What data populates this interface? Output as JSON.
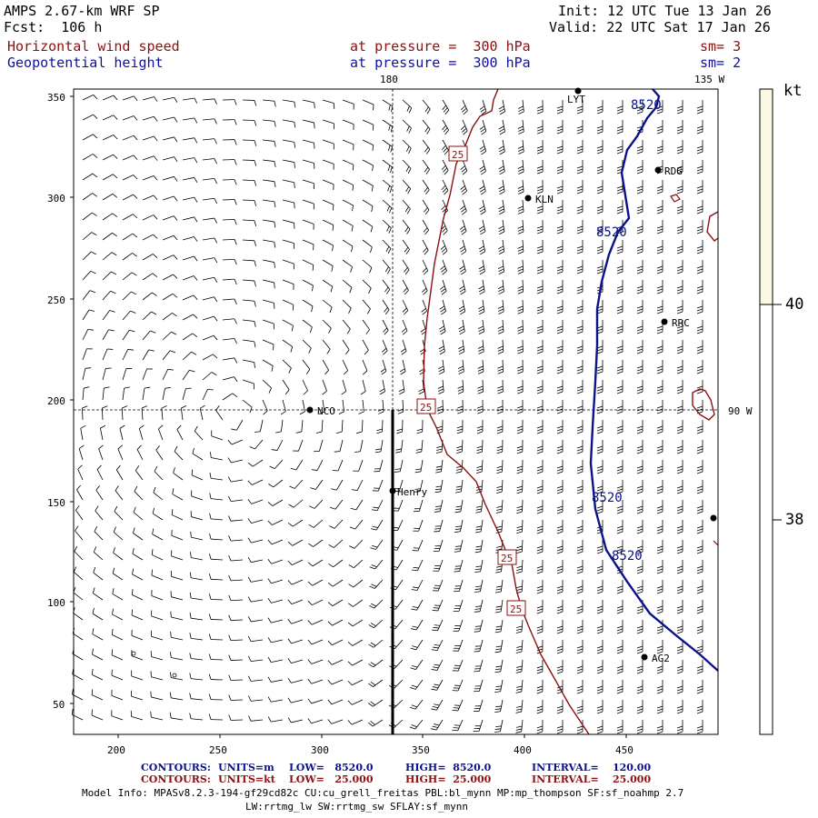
{
  "header": {
    "model_title": "AMPS 2.67-km WRF SP",
    "fcst": "Fcst:  106 h",
    "init": "Init: 12 UTC Tue 13 Jan 26",
    "valid": "Valid: 22 UTC Sat 17 Jan 26",
    "field1_name": "Horizontal wind speed",
    "field1_level": "at pressure =  300 hPa",
    "field1_sm": "sm= 3",
    "field2_name": "Geopotential height",
    "field2_level": "at pressure =  300 hPa",
    "field2_sm": "sm= 2"
  },
  "map": {
    "lon_label_180": "180",
    "lon_label_135w": "135 W",
    "lon_label_90w": "90 W",
    "x_ticks": [
      "200",
      "250",
      "300",
      "350",
      "400",
      "450"
    ],
    "y_ticks": [
      "350",
      "300",
      "250",
      "200",
      "150",
      "100",
      "50"
    ],
    "stations": [
      {
        "id": "LYT",
        "label": "LYT"
      },
      {
        "id": "RDG",
        "label": "RDG"
      },
      {
        "id": "KLN",
        "label": "KLN"
      },
      {
        "id": "RRC",
        "label": "RRC"
      },
      {
        "id": "NCO",
        "label": "NCO"
      },
      {
        "id": "Henry",
        "label": "Henry"
      },
      {
        "id": "AG2",
        "label": "AG2"
      }
    ],
    "contour_labels_height": [
      "8520",
      "8520",
      "8520",
      "8520"
    ],
    "contour_labels_speed": [
      "25",
      "25",
      "25",
      "25"
    ]
  },
  "colorbar": {
    "unit": "kt",
    "ticks": [
      "40",
      "38"
    ]
  },
  "footer": {
    "c1_prefix": "CONTOURS:",
    "c1_units": "UNITS=m",
    "c1_low": "LOW=   8520.0",
    "c1_high": "HIGH=  8520.0",
    "c1_interval": "INTERVAL=    120.00",
    "c2_prefix": "CONTOURS:",
    "c2_units": "UNITS=kt",
    "c2_low": "LOW=   25.000",
    "c2_high": "HIGH=  25.000",
    "c2_interval": "INTERVAL=    25.000",
    "model_info": "Model Info: MPASv8.2.3-194-gf29cd82c CU:cu_grell_freitas PBL:bl_mynn MP:mp_thompson SF:sf_noahmp 2.7",
    "model_info2": "LW:rrtmg_lw SW:rrtmg_sw SFLAY:sf_mynn"
  },
  "colors": {
    "height_contour": "#0b1487",
    "speed_contour": "#8b1010",
    "colorbar_fill": "#fcf8e4"
  }
}
